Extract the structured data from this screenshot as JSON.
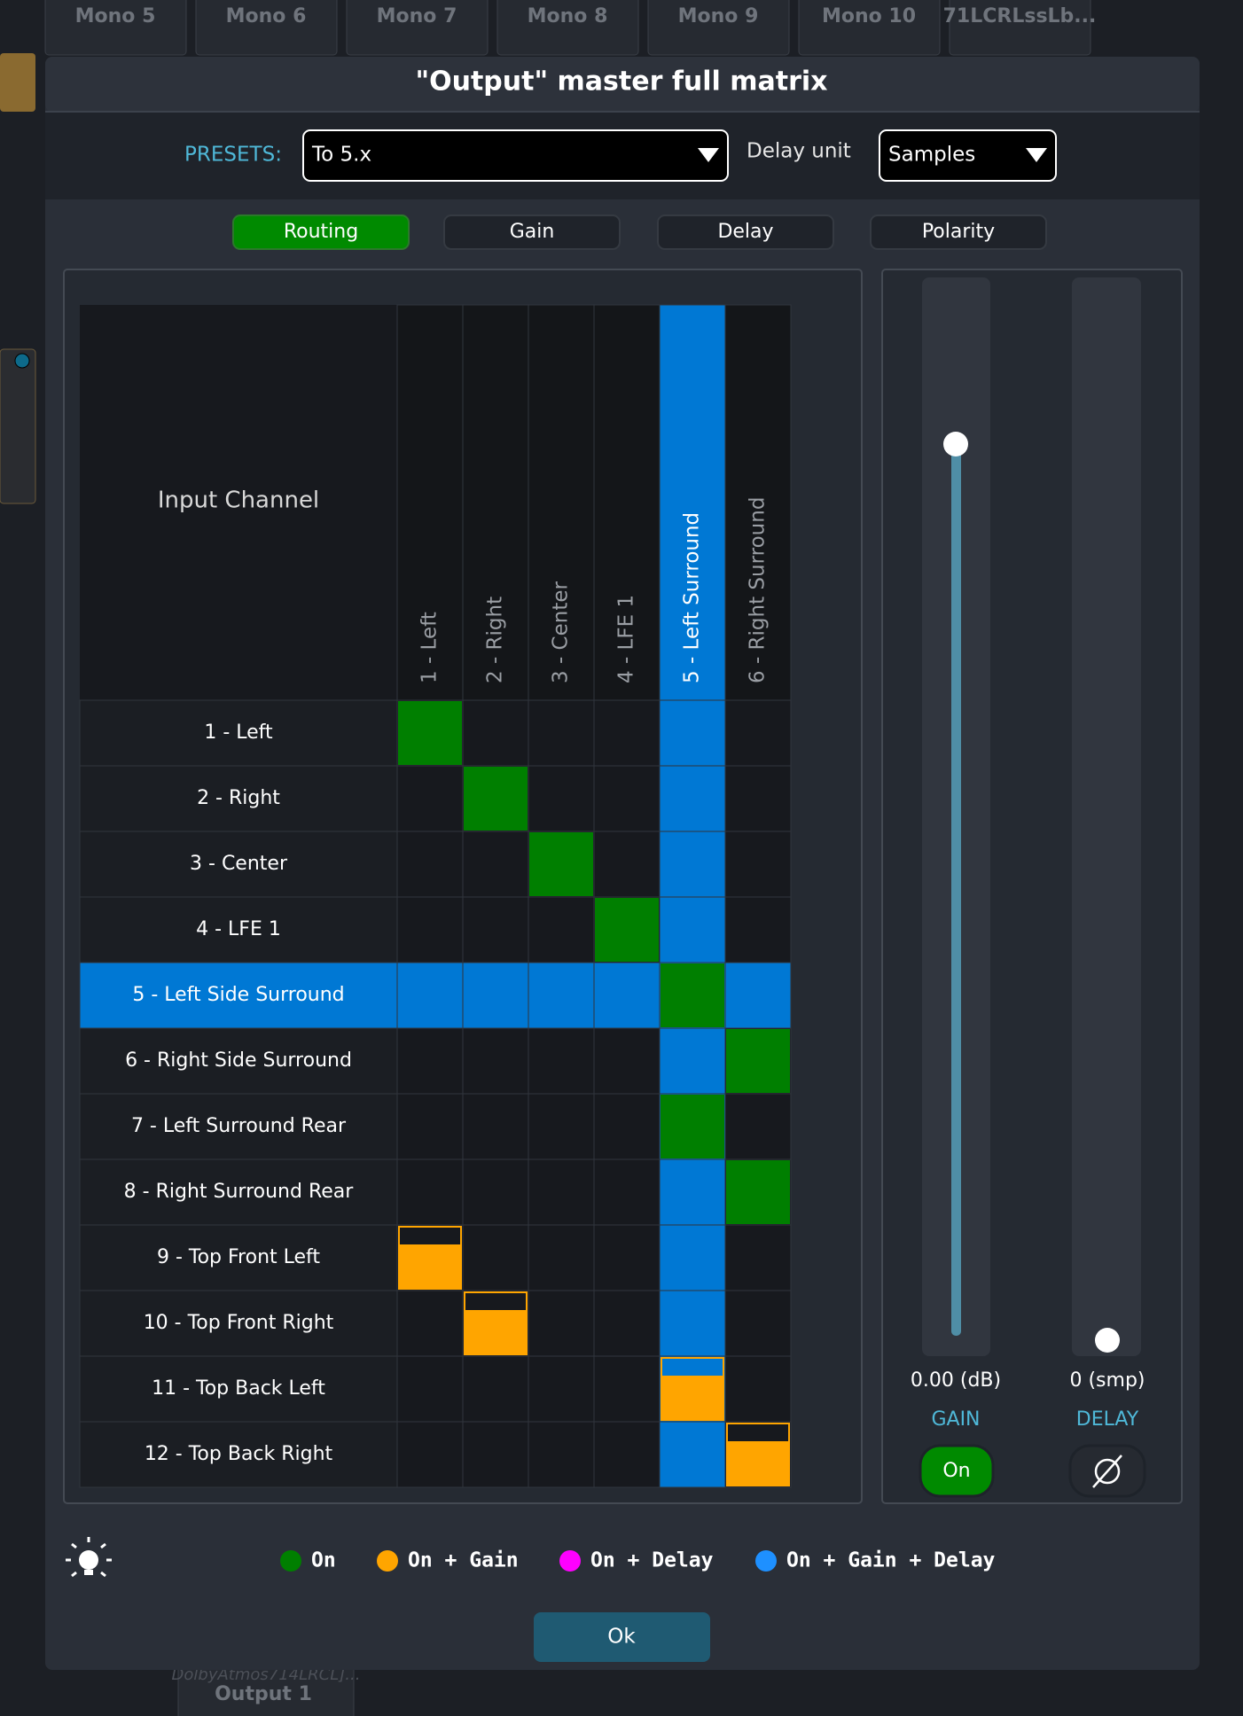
{
  "background": {
    "tabs": [
      "Mono 5",
      "Mono 6",
      "Mono 7",
      "Mono 8",
      "Mono 9",
      "Mono 10",
      "71LCRLssLb..."
    ],
    "bottom_tab": {
      "subtitle": "DolbyAtmos714LRCL]...",
      "title": "Output 1"
    }
  },
  "dialog": {
    "title": "\"Output\" master full matrix",
    "presets_label": "PRESETS:",
    "preset": "To 5.x",
    "delay_unit_label": "Delay unit",
    "delay_unit": "Samples",
    "tabs": [
      "Routing",
      "Gain",
      "Delay",
      "Polarity"
    ],
    "active_tab": 0,
    "matrix": {
      "corner": "Input Channel",
      "outputs": [
        "1 - Left",
        "2 - Right",
        "3 - Center",
        "4 - LFE 1",
        "5 - Left Surround",
        "6 - Right Surround"
      ],
      "inputs": [
        "1 - Left",
        "2 - Right",
        "3 - Center",
        "4 - LFE 1",
        "5 - Left Side Surround",
        "6 - Right Side Surround",
        "7 - Left Surround Rear",
        "8 - Right Surround Rear",
        "9 - Top Front Left",
        "10 - Top Front Right",
        "11 - Top Back Left",
        "12 - Top Back Right"
      ],
      "selected_input": 4,
      "selected_output": 4,
      "routes": [
        [
          "On",
          null,
          null,
          null,
          null,
          null
        ],
        [
          null,
          "On",
          null,
          null,
          null,
          null
        ],
        [
          null,
          null,
          "On",
          null,
          null,
          null
        ],
        [
          null,
          null,
          null,
          "On",
          null,
          null
        ],
        [
          null,
          null,
          null,
          null,
          "On",
          null
        ],
        [
          null,
          null,
          null,
          null,
          null,
          "On"
        ],
        [
          null,
          null,
          null,
          null,
          "On",
          null
        ],
        [
          null,
          null,
          null,
          null,
          null,
          "On"
        ],
        [
          "On + Gain",
          null,
          null,
          null,
          null,
          null
        ],
        [
          null,
          "On + Gain",
          null,
          null,
          null,
          null
        ],
        [
          null,
          null,
          null,
          null,
          "On + Gain",
          null
        ],
        [
          null,
          null,
          null,
          null,
          null,
          "On + Gain"
        ]
      ]
    },
    "gain": {
      "value": "0.00 (dB)",
      "label": "GAIN",
      "button": "On"
    },
    "delay": {
      "value": "0 (smp)",
      "label": "DELAY"
    },
    "legend": [
      {
        "label": "On",
        "color": "#007f00"
      },
      {
        "label": "On + Gain",
        "color": "#ffa500"
      },
      {
        "label": "On + Delay",
        "color": "#ff00ff"
      },
      {
        "label": "On + Gain + Delay",
        "color": "#1e90ff"
      }
    ],
    "ok": "Ok"
  }
}
